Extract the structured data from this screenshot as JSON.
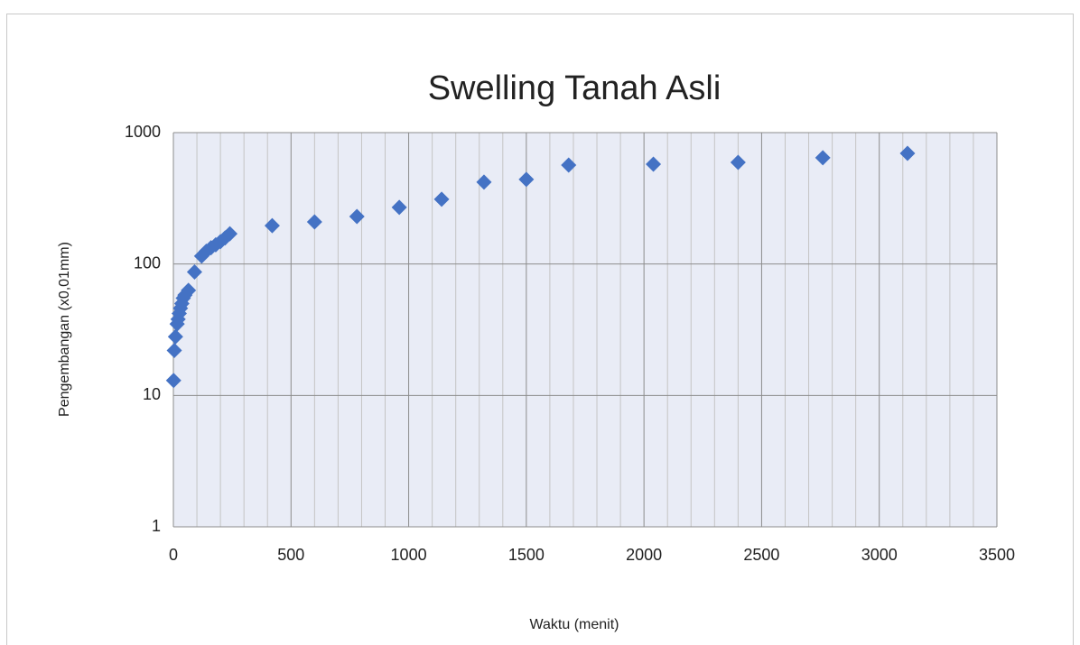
{
  "chart_data": {
    "type": "scatter",
    "title": "Swelling Tanah Asli",
    "x_label": "Waktu (menit)",
    "y_label": "Pengembangan (x0,01mm)",
    "color": "#4472c4",
    "log_y": true,
    "grid": true,
    "background": "#e9ecf6",
    "xlim": [
      0,
      3500
    ],
    "ylim": [
      1,
      1000
    ],
    "xticks": [
      0,
      500,
      1000,
      1500,
      2000,
      2500,
      3000,
      3500
    ],
    "xminorticks": [
      100,
      200,
      300,
      400,
      600,
      700,
      800,
      900,
      1100,
      1200,
      1300,
      1400,
      1600,
      1700,
      1800,
      1900,
      2100,
      2200,
      2300,
      2400,
      2600,
      2700,
      2800,
      2900,
      3100,
      3200,
      3300,
      3400
    ],
    "yticks": [
      1,
      10,
      100,
      1000
    ],
    "x": [
      1,
      4,
      9,
      16,
      20,
      25,
      30,
      36,
      42,
      49,
      64,
      90,
      120,
      140,
      160,
      180,
      200,
      220,
      240,
      420,
      600,
      780,
      960,
      1140,
      1320,
      1500,
      1680,
      2040,
      2400,
      2760,
      3120
    ],
    "values": [
      13,
      22,
      28,
      35,
      38,
      42,
      46,
      50,
      55,
      58,
      63,
      87,
      115,
      125,
      133,
      140,
      148,
      158,
      170,
      196,
      209,
      230,
      270,
      311,
      420,
      440,
      566,
      575,
      594,
      643,
      695
    ]
  }
}
